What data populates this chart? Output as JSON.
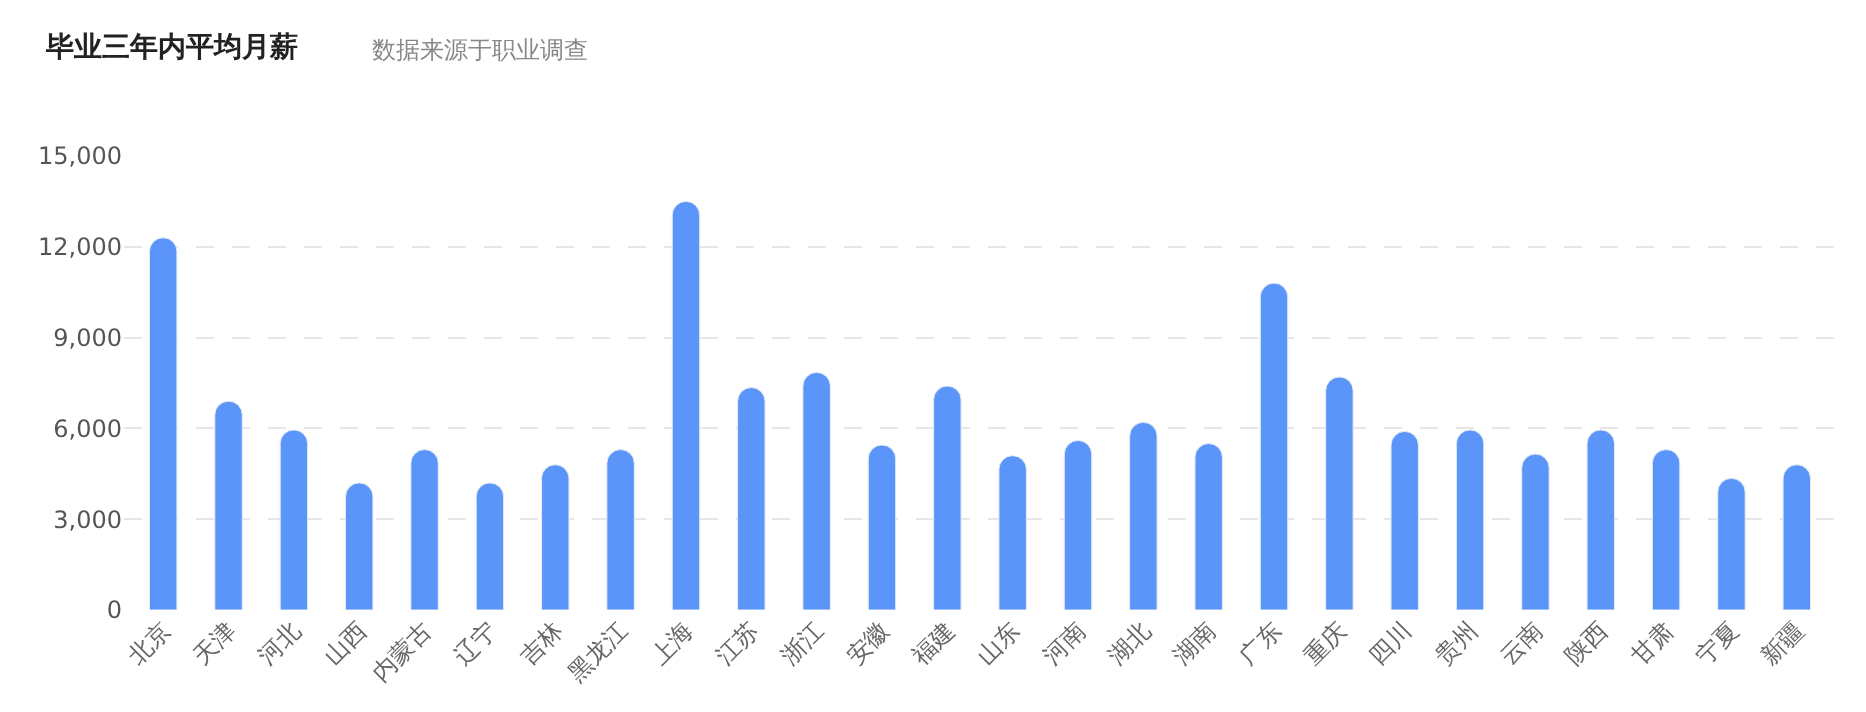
{
  "chart_data": {
    "type": "bar",
    "title": "毕业三年内平均月薪",
    "subtitle": "数据来源于职业调查",
    "categories": [
      "北京",
      "天津",
      "河北",
      "山西",
      "内蒙古",
      "辽宁",
      "吉林",
      "黑龙江",
      "上海",
      "江苏",
      "浙江",
      "安徽",
      "福建",
      "山东",
      "河南",
      "湖北",
      "湖南",
      "广东",
      "重庆",
      "四川",
      "贵州",
      "云南",
      "陕西",
      "甘肃",
      "宁夏",
      "新疆"
    ],
    "values": [
      12300,
      6900,
      5950,
      4200,
      5300,
      4200,
      4800,
      5300,
      13500,
      7350,
      7850,
      5450,
      7400,
      5100,
      5600,
      6200,
      5500,
      10800,
      7700,
      5900,
      5950,
      5150,
      5950,
      5300,
      4350,
      4800
    ],
    "color": "#5b95f9",
    "ylim": [
      0,
      15000
    ],
    "yticks": [
      {
        "value": 0,
        "label": "0"
      },
      {
        "value": 3000,
        "label": "3,000"
      },
      {
        "value": 6000,
        "label": "6,000"
      },
      {
        "value": 9000,
        "label": "9,000"
      },
      {
        "value": 12000,
        "label": "12,000"
      },
      {
        "value": 15000,
        "label": "15,000"
      }
    ],
    "grid": "y"
  }
}
